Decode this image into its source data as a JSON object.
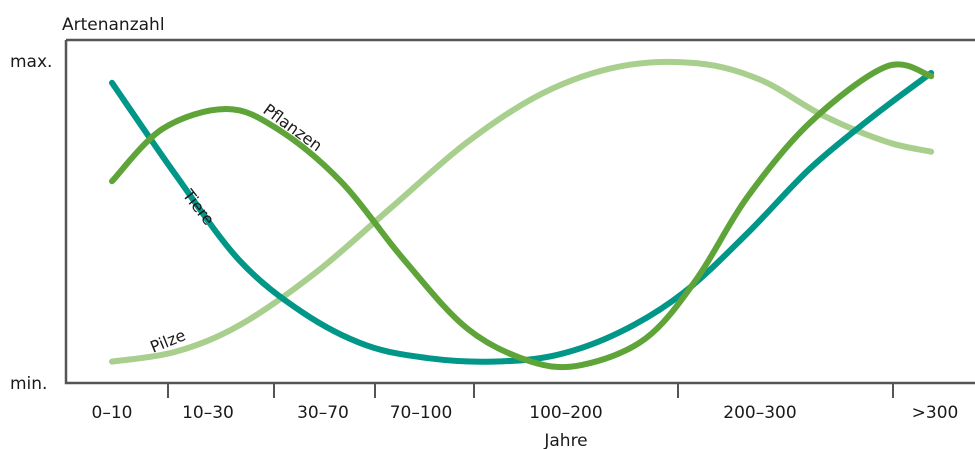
{
  "chart_data": {
    "type": "line",
    "ylabel": "Artenanzahl",
    "xlabel": "Jahre",
    "y_ticks": [
      "min.",
      "max."
    ],
    "categories": [
      "0–10",
      "10–30",
      "30–70",
      "70–100",
      "100–200",
      "200–300",
      ">300"
    ],
    "ylim": [
      0,
      1
    ],
    "grid": false,
    "series": [
      {
        "name": "Tiere",
        "color": "#009688",
        "x": [
          0,
          0.5,
          1,
          1.5,
          2,
          2.5,
          3,
          3.5,
          4,
          4.5,
          5,
          5.5,
          6,
          6.45
        ],
        "y": [
          0.9,
          0.62,
          0.36,
          0.2,
          0.1,
          0.06,
          0.05,
          0.07,
          0.14,
          0.26,
          0.44,
          0.64,
          0.8,
          0.93
        ]
      },
      {
        "name": "Pflanzen",
        "color": "#5ea438",
        "x": [
          0,
          0.4,
          0.9,
          1.3,
          1.8,
          2.3,
          2.8,
          3.3,
          3.7,
          4.2,
          4.6,
          5.0,
          5.5,
          6.1,
          6.45
        ],
        "y": [
          0.6,
          0.76,
          0.82,
          0.76,
          0.6,
          0.36,
          0.15,
          0.05,
          0.04,
          0.12,
          0.3,
          0.55,
          0.78,
          0.95,
          0.92
        ]
      },
      {
        "name": "Pilze",
        "color": "#a8cf8d",
        "x": [
          0,
          0.5,
          1,
          1.6,
          2.2,
          2.8,
          3.4,
          4.0,
          4.6,
          5.1,
          5.6,
          6.1,
          6.45
        ],
        "y": [
          0.05,
          0.08,
          0.16,
          0.32,
          0.52,
          0.72,
          0.87,
          0.95,
          0.96,
          0.91,
          0.8,
          0.72,
          0.69
        ]
      }
    ]
  }
}
